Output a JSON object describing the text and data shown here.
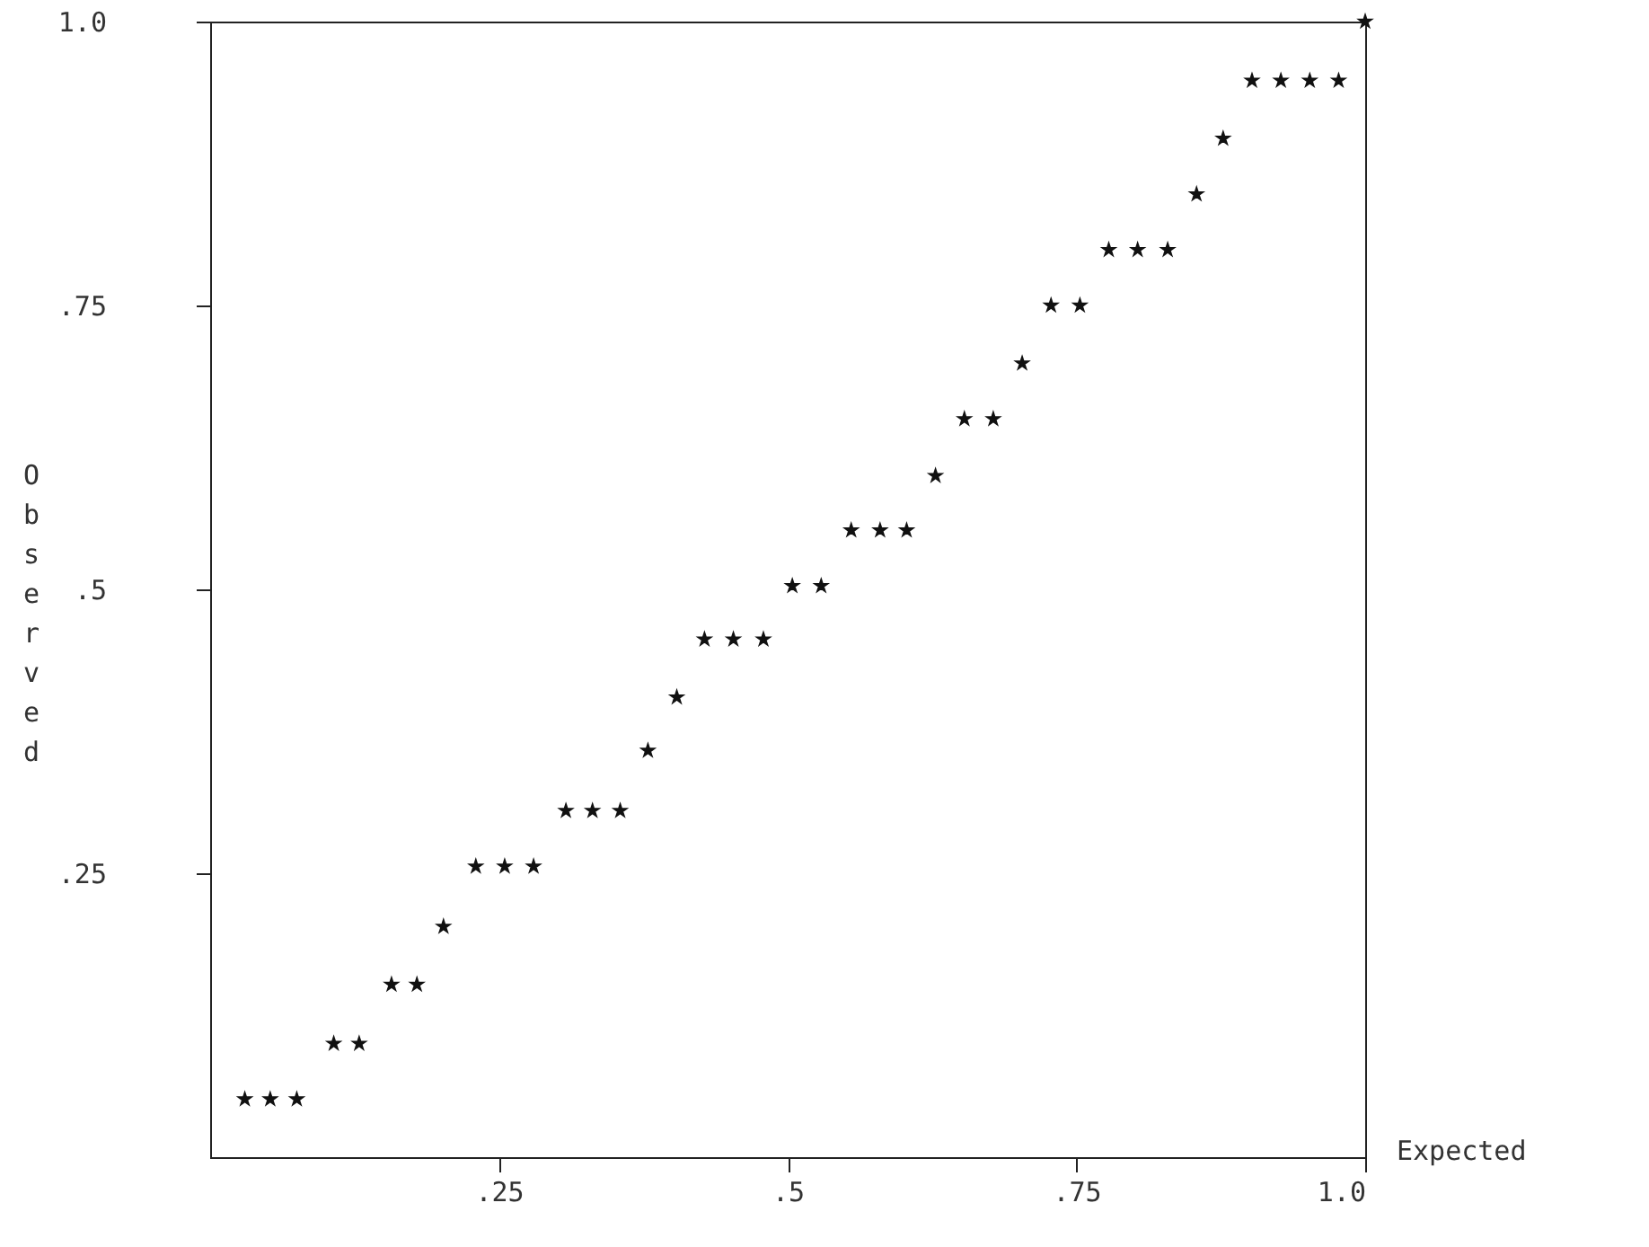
{
  "chart_data": {
    "type": "scatter",
    "xlabel": "Expected",
    "ylabel": "Observed",
    "marker": "star",
    "color": "#111111",
    "grid": false,
    "x": [
      0.03,
      0.052,
      0.075,
      0.107,
      0.129,
      0.157,
      0.179,
      0.202,
      0.23,
      0.255,
      0.28,
      0.308,
      0.331,
      0.355,
      0.379,
      0.404,
      0.428,
      0.453,
      0.479,
      0.504,
      0.529,
      0.555,
      0.58,
      0.603,
      0.628,
      0.653,
      0.678,
      0.703,
      0.728,
      0.753,
      0.778,
      0.803,
      0.829,
      0.854,
      0.877,
      0.902,
      0.927,
      0.952,
      0.977,
      1.0
    ],
    "values": [
      0.051,
      0.051,
      0.051,
      0.1,
      0.1,
      0.152,
      0.152,
      0.203,
      0.256,
      0.256,
      0.256,
      0.305,
      0.305,
      0.305,
      0.358,
      0.405,
      0.456,
      0.456,
      0.456,
      0.503,
      0.503,
      0.552,
      0.552,
      0.552,
      0.6,
      0.65,
      0.65,
      0.699,
      0.75,
      0.75,
      0.799,
      0.799,
      0.799,
      0.848,
      0.897,
      0.948,
      0.948,
      0.948,
      0.948,
      1.0
    ],
    "xlim": [
      0,
      1
    ],
    "ylim": [
      0,
      1
    ],
    "xticks": [
      {
        "value": 0.25,
        "label": ".25"
      },
      {
        "value": 0.5,
        "label": ".5"
      },
      {
        "value": 0.75,
        "label": ".75"
      },
      {
        "value": 1,
        "label": "1.0"
      }
    ],
    "yticks": [
      {
        "value": 0.25,
        "label": ".25"
      },
      {
        "value": 0.5,
        "label": ".5"
      },
      {
        "value": 0.75,
        "label": ".75"
      },
      {
        "value": 1,
        "label": "1.0"
      }
    ]
  }
}
